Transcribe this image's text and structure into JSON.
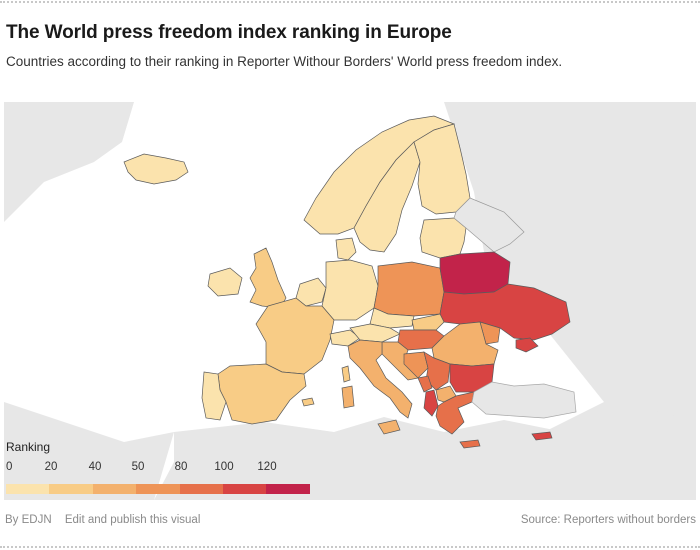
{
  "title": "The World press freedom index ranking in Europe",
  "subtitle": "Countries according to their ranking in Reporter Withour Borders' World press freedom index.",
  "legend": {
    "title": "Ranking",
    "ticks": [
      "0",
      "20",
      "40",
      "50",
      "80",
      "100",
      "120"
    ],
    "colors": [
      "#fbe3ad",
      "#f8cc86",
      "#f3b16d",
      "#ee9457",
      "#e6704a",
      "#d84443",
      "#c2234a"
    ]
  },
  "footer": {
    "credit": "By EDJN",
    "edit_link": "Edit and publish this visual",
    "source": "Source: Reporters without borders"
  },
  "colors": {
    "land_background": "#e7e7e7",
    "sea": "#ffffff",
    "border": "#5b5b5b"
  }
}
